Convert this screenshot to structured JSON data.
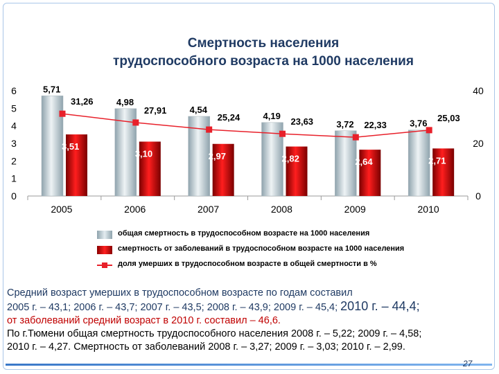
{
  "slide": {
    "title_line1": "Смертность населения",
    "title_line2": "трудоспособного возраста на 1000 населения",
    "page_number": "27"
  },
  "chart_data": {
    "type": "bar",
    "categories": [
      "2005",
      "2006",
      "2007",
      "2008",
      "2009",
      "2010"
    ],
    "series": [
      {
        "name": "общая смертность в трудоспособном возрасте на 1000 населения",
        "axis": "left",
        "values": [
          5.71,
          4.98,
          4.54,
          4.19,
          3.72,
          3.76
        ],
        "labels": [
          "5,71",
          "4,98",
          "4,54",
          "4,19",
          "3,72",
          "3,76"
        ],
        "color": "#b7c6cd"
      },
      {
        "name": "смертность от заболеваний в трудоспособном возрасте на 1000 населения",
        "axis": "left",
        "values": [
          3.51,
          3.1,
          2.97,
          2.82,
          2.64,
          2.71
        ],
        "labels": [
          "3,51",
          "3,10",
          "2,97",
          "2,82",
          "2,64",
          "2,71"
        ],
        "color": "#d40000"
      },
      {
        "name": "доля умерших в трудоспособном возрасте в общей смертности в %",
        "axis": "right",
        "type": "line",
        "values": [
          31.26,
          27.91,
          25.24,
          23.63,
          22.33,
          25.03
        ],
        "labels": [
          "31,26",
          "27,91",
          "25,24",
          "23,63",
          "22,33",
          "25,03"
        ],
        "color": "#e8202a"
      }
    ],
    "left_axis": {
      "ylim": [
        0,
        6
      ],
      "ticks": [
        "0",
        "1",
        "2",
        "3",
        "4",
        "5",
        "6"
      ]
    },
    "right_axis": {
      "ylim": [
        0,
        40
      ],
      "ticks": [
        "0",
        "20",
        "40"
      ]
    },
    "legend_position": "bottom"
  },
  "notes": {
    "line1": "Средний возраст умерших в трудоспособном возрасте по годам составил",
    "line2_a": "2005 г. – 43,1; 2006 г. – 43,7; 2007 г. – 43,5; 2008 г. – 43,9; 2009 г. – 45,4; ",
    "line2_b": "2010 г. –  44,4;",
    "line3": "от заболеваний средний возраст в 2010 г. составил – 46,6.",
    "line4": "По г.Тюмени общая смертность трудоспособного населения 2008 г. – 5,22; 2009 г. – 4,58;",
    "line5": "2010 г. – 4,27. Смертность от заболеваний 2008 г. – 3,27; 2009 г. – 3,03; 2010 г. – 2,99."
  },
  "colors": {
    "title": "#1f3a63",
    "bar_total": "#b7c6cd",
    "bar_disease": "#d40000",
    "line": "#e8202a",
    "note_highlight": "#c00000"
  }
}
